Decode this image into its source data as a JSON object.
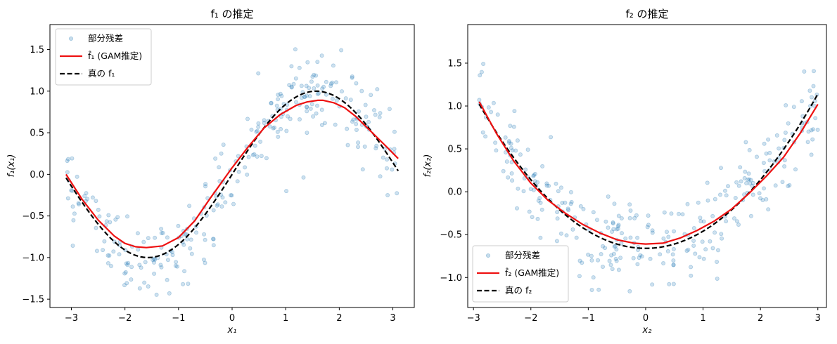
{
  "chart_data": [
    {
      "type": "scatter+line",
      "title": "f₁ の推定",
      "xlabel": "x₁",
      "ylabel": "f₁(x₁)",
      "xlim": [
        -3.4,
        3.4
      ],
      "ylim": [
        -1.6,
        1.8
      ],
      "xticks": [
        -3,
        -2,
        -1,
        0,
        1,
        2,
        3
      ],
      "xtick_labels": [
        "−3",
        "−2",
        "−1",
        "0",
        "1",
        "2",
        "3"
      ],
      "yticks": [
        -1.5,
        -1.0,
        -0.5,
        0.0,
        0.5,
        1.0,
        1.5
      ],
      "ytick_labels": [
        "−1.5",
        "−1.0",
        "−0.5",
        "0.0",
        "0.5",
        "1.0",
        "1.5"
      ],
      "legend_position": "upper-left",
      "legend": [
        "部分残差",
        "f̂₁ (GAM推定)",
        "真の f₁"
      ],
      "colors": {
        "scatter": "#1f77b4",
        "estimate": "#ee1111",
        "truth": "#000000"
      },
      "series": [
        {
          "name": "f̂₁ (GAM推定)",
          "style": "solid-red",
          "x": [
            -3.1,
            -2.8,
            -2.5,
            -2.2,
            -2.0,
            -1.8,
            -1.6,
            -1.3,
            -1.0,
            -0.7,
            -0.4,
            -0.2,
            0.0,
            0.3,
            0.6,
            0.9,
            1.2,
            1.4,
            1.6,
            1.7,
            1.9,
            2.1,
            2.3,
            2.6,
            2.9,
            3.1
          ],
          "y": [
            0.0,
            -0.3,
            -0.55,
            -0.74,
            -0.83,
            -0.87,
            -0.88,
            -0.86,
            -0.76,
            -0.56,
            -0.28,
            -0.1,
            0.08,
            0.33,
            0.56,
            0.72,
            0.83,
            0.87,
            0.89,
            0.89,
            0.86,
            0.8,
            0.7,
            0.51,
            0.32,
            0.19
          ]
        },
        {
          "name": "真の f₁",
          "style": "dashed-black",
          "function": "sin",
          "x_range": [
            -3.1,
            3.1
          ]
        },
        {
          "name": "部分残差",
          "style": "scatter",
          "n_points": 300,
          "model": "sin(x) + noise",
          "noise_sd": 0.25
        }
      ]
    },
    {
      "type": "scatter+line",
      "title": "f₂ の推定",
      "xlabel": "x₂",
      "ylabel": "f₂(x₂)",
      "xlim": [
        -3.1,
        3.15
      ],
      "ylim": [
        -1.35,
        1.95
      ],
      "xticks": [
        -3,
        -2,
        -1,
        0,
        1,
        2,
        3
      ],
      "xtick_labels": [
        "−3",
        "−2",
        "−1",
        "0",
        "1",
        "2",
        "3"
      ],
      "yticks": [
        -1.0,
        -0.5,
        0.0,
        0.5,
        1.0,
        1.5
      ],
      "ytick_labels": [
        "−1.0",
        "−0.5",
        "0.0",
        "0.5",
        "1.0",
        "1.5"
      ],
      "legend_position": "lower-left",
      "legend": [
        "部分残差",
        "f̂₂ (GAM推定)",
        "真の f₂"
      ],
      "colors": {
        "scatter": "#1f77b4",
        "estimate": "#ee1111",
        "truth": "#000000"
      },
      "series": [
        {
          "name": "f̂₂ (GAM推定)",
          "style": "solid-red",
          "x": [
            -2.9,
            -2.6,
            -2.3,
            -2.0,
            -1.7,
            -1.4,
            -1.1,
            -0.8,
            -0.5,
            -0.2,
            0.0,
            0.3,
            0.6,
            0.9,
            1.2,
            1.5,
            1.8,
            2.1,
            2.4,
            2.7,
            3.0
          ],
          "y": [
            1.05,
            0.68,
            0.36,
            0.1,
            -0.1,
            -0.25,
            -0.38,
            -0.48,
            -0.56,
            -0.6,
            -0.61,
            -0.6,
            -0.54,
            -0.45,
            -0.34,
            -0.2,
            -0.02,
            0.18,
            0.4,
            0.69,
            1.02
          ]
        },
        {
          "name": "真の f₂",
          "style": "dashed-black",
          "function": "0.2*x^2 - 0.66",
          "x_range": [
            -2.9,
            3.0
          ]
        },
        {
          "name": "部分残差",
          "style": "scatter",
          "n_points": 300,
          "model": "0.2*x^2 - 0.66 + noise",
          "noise_sd": 0.25
        }
      ]
    }
  ]
}
